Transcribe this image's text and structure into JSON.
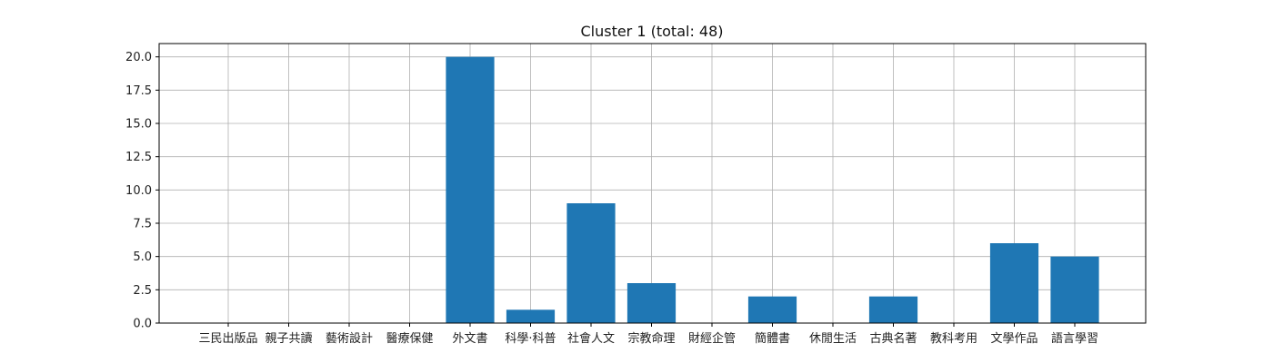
{
  "chart_data": {
    "type": "bar",
    "title": "Cluster 1 (total: 48)",
    "xlabel": "",
    "ylabel": "",
    "ylim": [
      0,
      21
    ],
    "yticks": [
      "0.0",
      "2.5",
      "5.0",
      "7.5",
      "10.0",
      "12.5",
      "15.0",
      "17.5",
      "20.0"
    ],
    "grid": true,
    "bar_color": "#1f77b4",
    "categories": [
      "三民出版品",
      "親子共讀",
      "藝術設計",
      "醫療保健",
      "外文書",
      "科學·科普",
      "社會人文",
      "宗教命理",
      "財經企管",
      "簡體書",
      "休閒生活",
      "古典名著",
      "教科考用",
      "文學作品",
      "語言學習"
    ],
    "values": [
      0,
      0,
      0,
      0,
      20,
      1,
      9,
      3,
      0,
      2,
      0,
      2,
      0,
      6,
      5
    ]
  }
}
